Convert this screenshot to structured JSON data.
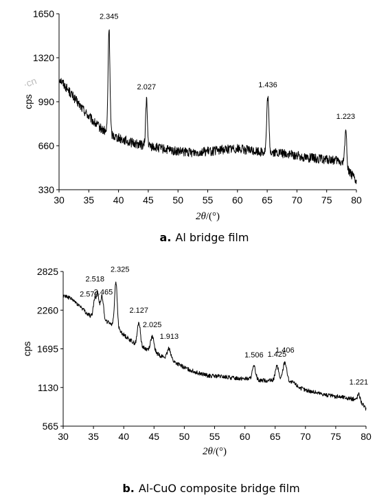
{
  "watermark": "·cn",
  "chart_data": [
    {
      "type": "line",
      "panel": "a.",
      "caption": "Al bridge film",
      "xlabel_var": "2θ",
      "xlabel_unit": "/(°)",
      "ylabel": "cps",
      "xlim": [
        30,
        80
      ],
      "ylim": [
        330,
        1650
      ],
      "xticks": [
        30,
        35,
        40,
        45,
        50,
        55,
        60,
        65,
        70,
        75,
        80
      ],
      "yticks": [
        330,
        660,
        990,
        1320,
        1650
      ],
      "grid": false,
      "baseline": [
        [
          30,
          1170
        ],
        [
          31,
          1110
        ],
        [
          32,
          1050
        ],
        [
          33,
          990
        ],
        [
          34,
          935
        ],
        [
          35,
          880
        ],
        [
          36,
          830
        ],
        [
          37,
          790
        ],
        [
          38,
          760
        ],
        [
          40,
          720
        ],
        [
          42,
          685
        ],
        [
          44,
          665
        ],
        [
          46,
          650
        ],
        [
          48,
          630
        ],
        [
          50,
          615
        ],
        [
          52,
          610
        ],
        [
          54,
          615
        ],
        [
          56,
          620
        ],
        [
          58,
          635
        ],
        [
          60,
          640
        ],
        [
          62,
          625
        ],
        [
          64,
          615
        ],
        [
          66,
          610
        ],
        [
          68,
          600
        ],
        [
          70,
          585
        ],
        [
          72,
          570
        ],
        [
          74,
          560
        ],
        [
          76,
          550
        ],
        [
          77,
          545
        ],
        [
          78,
          520
        ],
        [
          79,
          460
        ],
        [
          80,
          380
        ]
      ],
      "noise": 35,
      "peaks": [
        {
          "x": 38.4,
          "y": 1540,
          "width": 0.22,
          "label": "2.345"
        },
        {
          "x": 44.7,
          "y": 1010,
          "width": 0.2,
          "label": "2.027"
        },
        {
          "x": 65.1,
          "y": 1025,
          "width": 0.25,
          "label": "1.436"
        },
        {
          "x": 78.2,
          "y": 790,
          "width": 0.22,
          "label": "1.223"
        }
      ]
    },
    {
      "type": "line",
      "panel": "b.",
      "caption": "Al-CuO composite bridge film",
      "xlabel_var": "2θ",
      "xlabel_unit": "/(°)",
      "ylabel": "cps",
      "xlim": [
        30,
        80
      ],
      "ylim": [
        565,
        2825
      ],
      "xticks": [
        30,
        35,
        40,
        45,
        50,
        55,
        60,
        65,
        70,
        75,
        80
      ],
      "yticks": [
        565,
        1130,
        1695,
        2260,
        2825
      ],
      "grid": false,
      "baseline": [
        [
          30,
          2480
        ],
        [
          31,
          2440
        ],
        [
          32,
          2380
        ],
        [
          33,
          2300
        ],
        [
          34,
          2200
        ],
        [
          35,
          2160
        ],
        [
          36,
          2130
        ],
        [
          37,
          2100
        ],
        [
          38,
          2060
        ],
        [
          39,
          1990
        ],
        [
          40,
          1900
        ],
        [
          41,
          1830
        ],
        [
          42,
          1760
        ],
        [
          43,
          1720
        ],
        [
          44,
          1680
        ],
        [
          45,
          1650
        ],
        [
          46,
          1600
        ],
        [
          47,
          1560
        ],
        [
          48,
          1520
        ],
        [
          50,
          1420
        ],
        [
          52,
          1350
        ],
        [
          54,
          1300
        ],
        [
          56,
          1290
        ],
        [
          58,
          1270
        ],
        [
          60,
          1260
        ],
        [
          62,
          1240
        ],
        [
          64,
          1230
        ],
        [
          66,
          1220
        ],
        [
          68,
          1200
        ],
        [
          69,
          1130
        ],
        [
          70,
          1090
        ],
        [
          72,
          1050
        ],
        [
          74,
          1010
        ],
        [
          76,
          990
        ],
        [
          78,
          960
        ],
        [
          79,
          930
        ],
        [
          80,
          820
        ]
      ],
      "noise": 30,
      "peaks": [
        {
          "x": 35.2,
          "y": 2420,
          "width": 0.3,
          "label": "2.570"
        },
        {
          "x": 35.7,
          "y": 2500,
          "width": 0.3,
          "label": "2.518"
        },
        {
          "x": 36.4,
          "y": 2470,
          "width": 0.35,
          "label": "2.465"
        },
        {
          "x": 38.7,
          "y": 2680,
          "width": 0.3,
          "label": "2.325"
        },
        {
          "x": 42.5,
          "y": 2080,
          "width": 0.35,
          "label": "2.127"
        },
        {
          "x": 44.7,
          "y": 1870,
          "width": 0.4,
          "label": "2.025"
        },
        {
          "x": 47.5,
          "y": 1700,
          "width": 0.4,
          "label": "1.913"
        },
        {
          "x": 61.5,
          "y": 1430,
          "width": 0.4,
          "label": "1.506"
        },
        {
          "x": 65.3,
          "y": 1440,
          "width": 0.4,
          "label": "1.425"
        },
        {
          "x": 66.6,
          "y": 1500,
          "width": 0.45,
          "label": "1.406"
        },
        {
          "x": 78.8,
          "y": 1030,
          "width": 0.3,
          "label": "1.221"
        }
      ]
    }
  ]
}
